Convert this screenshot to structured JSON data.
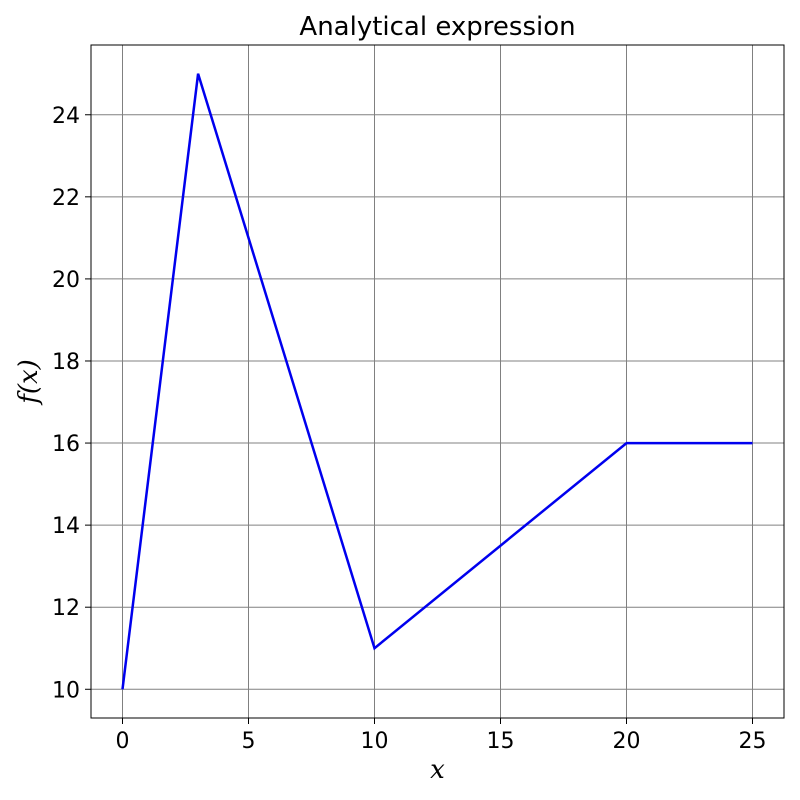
{
  "chart_data": {
    "type": "line",
    "title": "Analytical expression",
    "xlabel": "x",
    "ylabel": "f(x)",
    "xlim": [
      -1.25,
      26.25
    ],
    "ylim": [
      9.3,
      25.7
    ],
    "xticks": [
      0,
      5,
      10,
      15,
      20,
      25
    ],
    "yticks": [
      10,
      12,
      14,
      16,
      18,
      20,
      22,
      24
    ],
    "grid": true,
    "legend": "none",
    "series": [
      {
        "color": "#0000ee",
        "x": [
          0,
          3,
          10,
          20,
          25
        ],
        "y": [
          10,
          25,
          11,
          16,
          16
        ]
      }
    ]
  }
}
